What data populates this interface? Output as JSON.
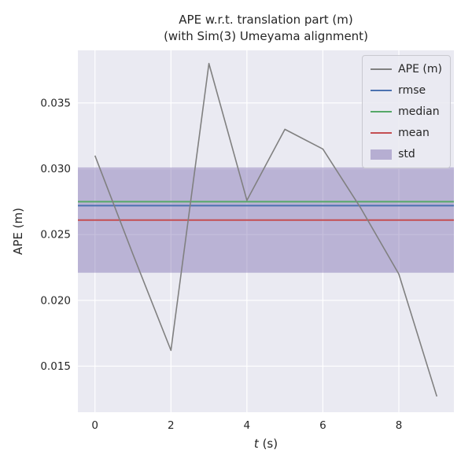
{
  "figure": {
    "title_line1": "APE w.r.t. translation part (m)",
    "title_line2": "(with Sim(3) Umeyama alignment)"
  },
  "chart_data": {
    "type": "line",
    "title": "APE w.r.t. translation part (m) (with Sim(3) Umeyama alignment)",
    "xlabel": "t (s)",
    "xlabel_parts": {
      "var": "t",
      "rest": " (s)"
    },
    "ylabel": "APE (m)",
    "x": [
      0,
      1,
      2,
      3,
      4,
      5,
      6,
      7,
      8,
      9
    ],
    "series": [
      {
        "name": "APE (m)",
        "color": "#808080",
        "values": [
          0.031,
          0.0235,
          0.0162,
          0.038,
          0.0276,
          0.033,
          0.0315,
          0.027,
          0.022,
          0.0127
        ]
      }
    ],
    "stats": {
      "rmse": {
        "value": 0.0272,
        "color": "#4c72b0"
      },
      "median": {
        "value": 0.0275,
        "color": "#55a868"
      },
      "mean": {
        "value": 0.0261,
        "color": "#c44e52"
      },
      "std": {
        "value": 0.004,
        "band": [
          0.0221,
          0.0301
        ],
        "color": "#8172b2"
      }
    },
    "xlim": [
      -0.45,
      9.45
    ],
    "ylim": [
      0.0115,
      0.039
    ],
    "xticks": [
      0,
      2,
      4,
      6,
      8
    ],
    "xtick_labels": [
      "0",
      "2",
      "4",
      "6",
      "8"
    ],
    "yticks": [
      0.015,
      0.02,
      0.025,
      0.03,
      0.035
    ],
    "ytick_labels": [
      "0.015",
      "0.020",
      "0.025",
      "0.030",
      "0.035"
    ],
    "grid": true,
    "legend": {
      "position": "upper right",
      "items": [
        {
          "label": "APE (m)",
          "type": "line",
          "color": "#808080"
        },
        {
          "label": "rmse",
          "type": "line",
          "color": "#4c72b0"
        },
        {
          "label": "median",
          "type": "line",
          "color": "#55a868"
        },
        {
          "label": "mean",
          "type": "line",
          "color": "#c44e52"
        },
        {
          "label": "std",
          "type": "patch",
          "color": "#8172b2"
        }
      ]
    },
    "colors": {
      "figure_bg": "#ffffff",
      "axes_bg": "#eaeaf2",
      "grid": "#ffffff",
      "text": "#262626"
    }
  }
}
